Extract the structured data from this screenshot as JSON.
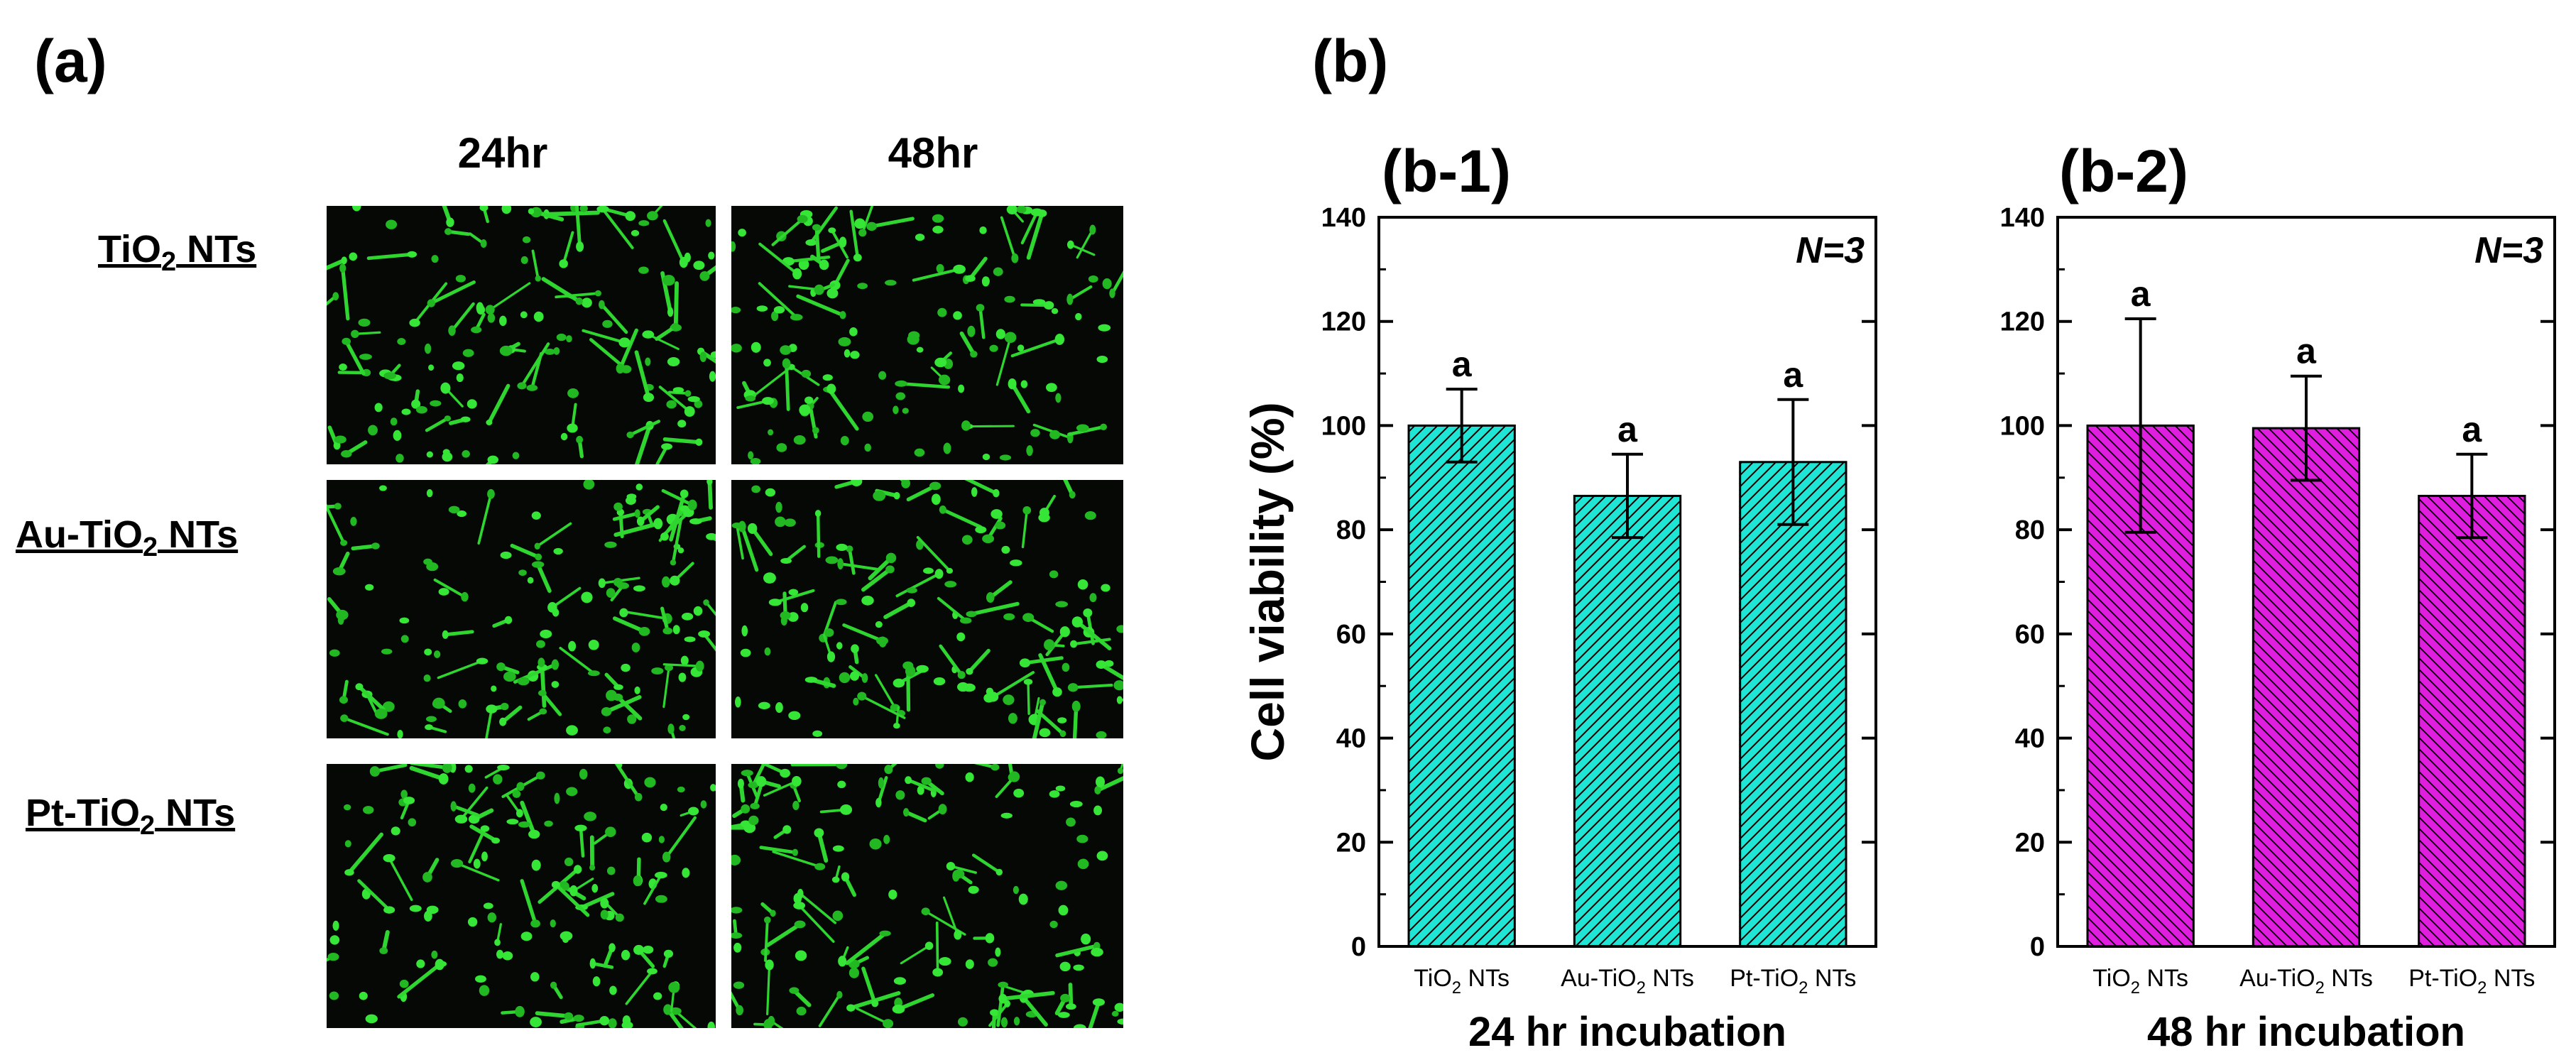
{
  "panel_a": {
    "label": "(a)",
    "columns": [
      "24hr",
      "48hr"
    ],
    "rows": [
      {
        "main": "TiO",
        "sub": "2",
        "rest": " NTs"
      },
      {
        "main": "Au-TiO",
        "sub": "2",
        "rest": " NTs"
      },
      {
        "main": "Pt-TiO",
        "sub": "2",
        "rest": " NTs"
      }
    ]
  },
  "panel_b": {
    "label": "(b)"
  },
  "chart_data": [
    {
      "type": "bar",
      "panel_title": "(b-1)",
      "annotation": "N=3",
      "categories": [
        {
          "main": "TiO",
          "sub": "2",
          "rest": " NTs"
        },
        {
          "main": "Au-TiO",
          "sub": "2",
          "rest": " NTs"
        },
        {
          "main": "Pt-TiO",
          "sub": "2",
          "rest": " NTs"
        }
      ],
      "values": [
        100,
        86.5,
        93
      ],
      "error": [
        7,
        8,
        12
      ],
      "significance_letters": [
        "a",
        "a",
        "a"
      ],
      "xlabel": "24 hr incubation",
      "ylabel": "Cell viability (%)",
      "ylim": [
        0,
        140
      ],
      "yticks": [
        0,
        20,
        40,
        60,
        80,
        100,
        120,
        140
      ],
      "fill_color": "#1ee6d4",
      "hatch": "forward-diagonal"
    },
    {
      "type": "bar",
      "panel_title": "(b-2)",
      "annotation": "N=3",
      "categories": [
        {
          "main": "TiO",
          "sub": "2",
          "rest": " NTs"
        },
        {
          "main": "Au-TiO",
          "sub": "2",
          "rest": " NTs"
        },
        {
          "main": "Pt-TiO",
          "sub": "2",
          "rest": " NTs"
        }
      ],
      "values": [
        100,
        99.5,
        86.5
      ],
      "error": [
        20.5,
        10,
        8
      ],
      "significance_letters": [
        "a",
        "a",
        "a"
      ],
      "xlabel": "48 hr incubation",
      "ylabel": "",
      "ylim": [
        0,
        140
      ],
      "yticks": [
        0,
        20,
        40,
        60,
        80,
        100,
        120,
        140
      ],
      "fill_color": "#e01ee0",
      "hatch": "backward-diagonal"
    }
  ]
}
